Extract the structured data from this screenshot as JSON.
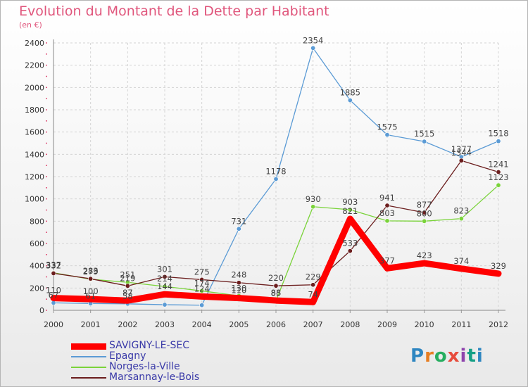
{
  "title": "Evolution du Montant de la Dette par Habitant",
  "unit": "(en €)",
  "logo_text": "Proxiti",
  "chart_data": {
    "type": "line",
    "title": "Evolution du Montant de la Dette par Habitant",
    "ylabel": "(en €)",
    "xlabel": "",
    "x": [
      "2000",
      "2001",
      "2002",
      "2003",
      "2004",
      "2005",
      "2006",
      "2007",
      "2008",
      "2009",
      "2010",
      "2011",
      "2012"
    ],
    "ylim": [
      0,
      2400
    ],
    "yticks": [
      0,
      200,
      400,
      600,
      800,
      1000,
      1200,
      1400,
      1600,
      1800,
      2000,
      2200,
      2400
    ],
    "grid": true,
    "legend_position": "bottom-left",
    "series": [
      {
        "name": "SAVIGNY-LE-SEC",
        "color": "#ff0000",
        "values": [
          110,
          100,
          87,
          144,
          124,
          110,
          88,
          74,
          821,
          377,
          423,
          374,
          329
        ],
        "labels": [
          "110",
          "100",
          "87",
          "144",
          "124",
          "110",
          "88",
          "74",
          "821",
          "377",
          "423",
          "374",
          "329"
        ]
      },
      {
        "name": "Epagny",
        "color": "#5b9bd5",
        "values": [
          67,
          61,
          58,
          50,
          46,
          731,
          1178,
          2354,
          1885,
          1575,
          1515,
          1377,
          1518
        ],
        "labels": [
          "67",
          "61",
          "58",
          "",
          "",
          "731",
          "1178",
          "2354",
          "1885",
          "1575",
          "1515",
          "1377",
          "1518"
        ]
      },
      {
        "name": "Norges-la-Ville",
        "color": "#7ad33a",
        "values": [
          337,
          279,
          251,
          214,
          174,
          130,
          85,
          930,
          903,
          803,
          800,
          823,
          1123
        ],
        "labels": [
          "337",
          "279",
          "251",
          "214",
          "174",
          "130",
          "85",
          "930",
          "903",
          "803",
          "800",
          "823",
          "1123"
        ]
      },
      {
        "name": "Marsannay-le-Bois",
        "color": "#6b1d1d",
        "values": [
          332,
          283,
          219,
          301,
          275,
          248,
          220,
          229,
          533,
          941,
          877,
          1344,
          1241
        ],
        "labels": [
          "332",
          "283",
          "219",
          "301",
          "275",
          "248",
          "220",
          "229",
          "533",
          "941",
          "877",
          "1344",
          "1241"
        ]
      }
    ]
  }
}
